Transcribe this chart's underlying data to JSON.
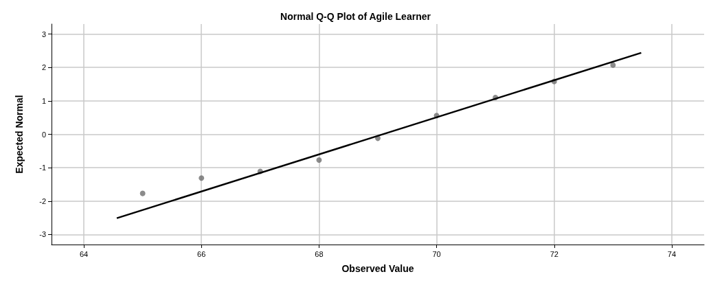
{
  "chart_data": {
    "type": "scatter",
    "title": "Normal Q-Q Plot of Agile Learner",
    "xlabel": "Observed Value",
    "ylabel": "Expected Normal",
    "xlim": [
      63.45,
      74.55
    ],
    "xticks": [
      64,
      66,
      68,
      70,
      72,
      74
    ],
    "ylim": [
      -3.3,
      3.3
    ],
    "yticks": [
      -3,
      -2,
      -1,
      0,
      1,
      2,
      3
    ],
    "grid": true,
    "series": [
      {
        "marker": "circle",
        "color": "#6e6e6e",
        "x": [
          65,
          66,
          67,
          68,
          69,
          70,
          71,
          72,
          73
        ],
        "values": [
          -1.77,
          -1.31,
          -1.11,
          -0.77,
          -0.12,
          0.56,
          1.1,
          1.58,
          2.07
        ]
      },
      {
        "type": "line",
        "color": "#000000",
        "x": [
          64.56,
          73.48
        ],
        "values": [
          -2.51,
          2.44
        ]
      }
    ]
  }
}
